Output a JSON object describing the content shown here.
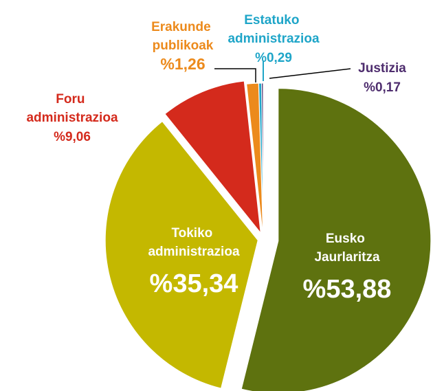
{
  "chart_data": {
    "type": "pie",
    "categories": [
      "Eusko Jaurlaritza",
      "Tokiko administrazioa",
      "Foru administrazioa",
      "Erakunde publikoak",
      "Estatuko administrazioa",
      "Justizia"
    ],
    "values": [
      53.88,
      35.34,
      9.06,
      1.26,
      0.29,
      0.17
    ],
    "value_labels": [
      "%53,88",
      "%35,34",
      "%9,06",
      "%1,26",
      "%0,29",
      "%0,17"
    ],
    "colors": [
      "#5e720f",
      "#c4b800",
      "#d42a1c",
      "#ec8a1c",
      "#1ea5c8",
      "#4e2d6e"
    ]
  }
}
